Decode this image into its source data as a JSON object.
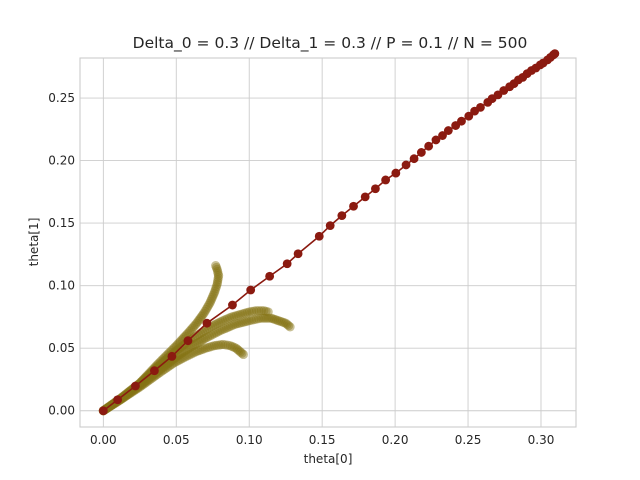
{
  "chart_data": {
    "type": "line",
    "title": "Delta_0 = 0.3 // Delta_1 = 0.3 // P = 0.1 // N = 500",
    "xlabel": "theta[0]",
    "ylabel": "theta[1]",
    "xlim": [
      -0.016,
      0.324
    ],
    "ylim": [
      -0.013,
      0.282
    ],
    "xticks": [
      "0.00",
      "0.05",
      "0.10",
      "0.15",
      "0.20",
      "0.25",
      "0.30"
    ],
    "xtick_values": [
      0,
      0.05,
      0.1,
      0.15,
      0.2,
      0.25,
      0.3
    ],
    "yticks": [
      "0.00",
      "0.05",
      "0.10",
      "0.15",
      "0.20",
      "0.25"
    ],
    "ytick_values": [
      0,
      0.05,
      0.1,
      0.15,
      0.2,
      0.25
    ],
    "grid": true,
    "colors": {
      "main": "#8b1a10",
      "trajectories": "#857414"
    },
    "series": [
      {
        "style": "line-markers",
        "points": [
          [
            0,
            0
          ],
          [
            0.0098,
            0.0088
          ],
          [
            0.022,
            0.0198
          ],
          [
            0.035,
            0.032
          ],
          [
            0.047,
            0.0435
          ],
          [
            0.058,
            0.056
          ],
          [
            0.071,
            0.07
          ],
          [
            0.0885,
            0.0845
          ],
          [
            0.101,
            0.0965
          ],
          [
            0.114,
            0.1075
          ],
          [
            0.126,
            0.1175
          ],
          [
            0.1335,
            0.1255
          ],
          [
            0.148,
            0.1395
          ],
          [
            0.1555,
            0.148
          ],
          [
            0.1635,
            0.156
          ],
          [
            0.1715,
            0.1635
          ],
          [
            0.1795,
            0.171
          ],
          [
            0.1865,
            0.1775
          ],
          [
            0.1935,
            0.1845
          ],
          [
            0.2005,
            0.19
          ],
          [
            0.2075,
            0.1965
          ],
          [
            0.213,
            0.2015
          ],
          [
            0.218,
            0.2065
          ],
          [
            0.223,
            0.2115
          ],
          [
            0.228,
            0.2165
          ],
          [
            0.2325,
            0.22
          ],
          [
            0.2365,
            0.224
          ],
          [
            0.2415,
            0.228
          ],
          [
            0.2455,
            0.2315
          ],
          [
            0.2505,
            0.2355
          ],
          [
            0.2545,
            0.2395
          ],
          [
            0.2585,
            0.2425
          ],
          [
            0.2635,
            0.2465
          ],
          [
            0.2665,
            0.2495
          ],
          [
            0.2705,
            0.2525
          ],
          [
            0.2745,
            0.256
          ],
          [
            0.2785,
            0.259
          ],
          [
            0.2815,
            0.2615
          ],
          [
            0.2845,
            0.2645
          ],
          [
            0.2875,
            0.2665
          ],
          [
            0.2905,
            0.2695
          ],
          [
            0.2935,
            0.272
          ],
          [
            0.2965,
            0.274
          ],
          [
            0.2995,
            0.2765
          ],
          [
            0.3015,
            0.278
          ],
          [
            0.3045,
            0.2805
          ],
          [
            0.3065,
            0.2825
          ],
          [
            0.3085,
            0.2845
          ],
          [
            0.3095,
            0.2855
          ]
        ]
      },
      {
        "style": "markers",
        "points": [
          [
            0,
            0
          ],
          [
            0.012,
            0.01
          ],
          [
            0.025,
            0.022
          ],
          [
            0.038,
            0.038
          ],
          [
            0.05,
            0.052
          ],
          [
            0.058,
            0.062
          ],
          [
            0.064,
            0.07
          ],
          [
            0.069,
            0.078
          ],
          [
            0.073,
            0.086
          ],
          [
            0.076,
            0.094
          ],
          [
            0.078,
            0.101
          ],
          [
            0.079,
            0.108
          ],
          [
            0.078,
            0.113
          ],
          [
            0.077,
            0.116
          ]
        ]
      },
      {
        "style": "markers",
        "points": [
          [
            0,
            0
          ],
          [
            0.012,
            0.01
          ],
          [
            0.025,
            0.022
          ],
          [
            0.038,
            0.036
          ],
          [
            0.05,
            0.048
          ],
          [
            0.06,
            0.057
          ],
          [
            0.068,
            0.063
          ],
          [
            0.075,
            0.068
          ],
          [
            0.082,
            0.072
          ],
          [
            0.088,
            0.075
          ],
          [
            0.094,
            0.077
          ],
          [
            0.1,
            0.079
          ],
          [
            0.105,
            0.08
          ],
          [
            0.11,
            0.08
          ],
          [
            0.113,
            0.079
          ]
        ]
      },
      {
        "style": "markers",
        "points": [
          [
            0,
            0
          ],
          [
            0.012,
            0.009
          ],
          [
            0.025,
            0.02
          ],
          [
            0.038,
            0.032
          ],
          [
            0.05,
            0.043
          ],
          [
            0.06,
            0.051
          ],
          [
            0.07,
            0.058
          ],
          [
            0.08,
            0.064
          ],
          [
            0.09,
            0.069
          ],
          [
            0.1,
            0.072
          ],
          [
            0.108,
            0.074
          ],
          [
            0.115,
            0.074
          ],
          [
            0.12,
            0.072
          ],
          [
            0.125,
            0.07
          ],
          [
            0.128,
            0.067
          ]
        ]
      },
      {
        "style": "markers",
        "points": [
          [
            0,
            0
          ],
          [
            0.012,
            0.009
          ],
          [
            0.025,
            0.019
          ],
          [
            0.038,
            0.03
          ],
          [
            0.048,
            0.038
          ],
          [
            0.056,
            0.043
          ],
          [
            0.063,
            0.047
          ],
          [
            0.07,
            0.05
          ],
          [
            0.076,
            0.052
          ],
          [
            0.082,
            0.053
          ],
          [
            0.087,
            0.052
          ],
          [
            0.091,
            0.05
          ],
          [
            0.094,
            0.047
          ],
          [
            0.096,
            0.045
          ]
        ]
      }
    ]
  }
}
